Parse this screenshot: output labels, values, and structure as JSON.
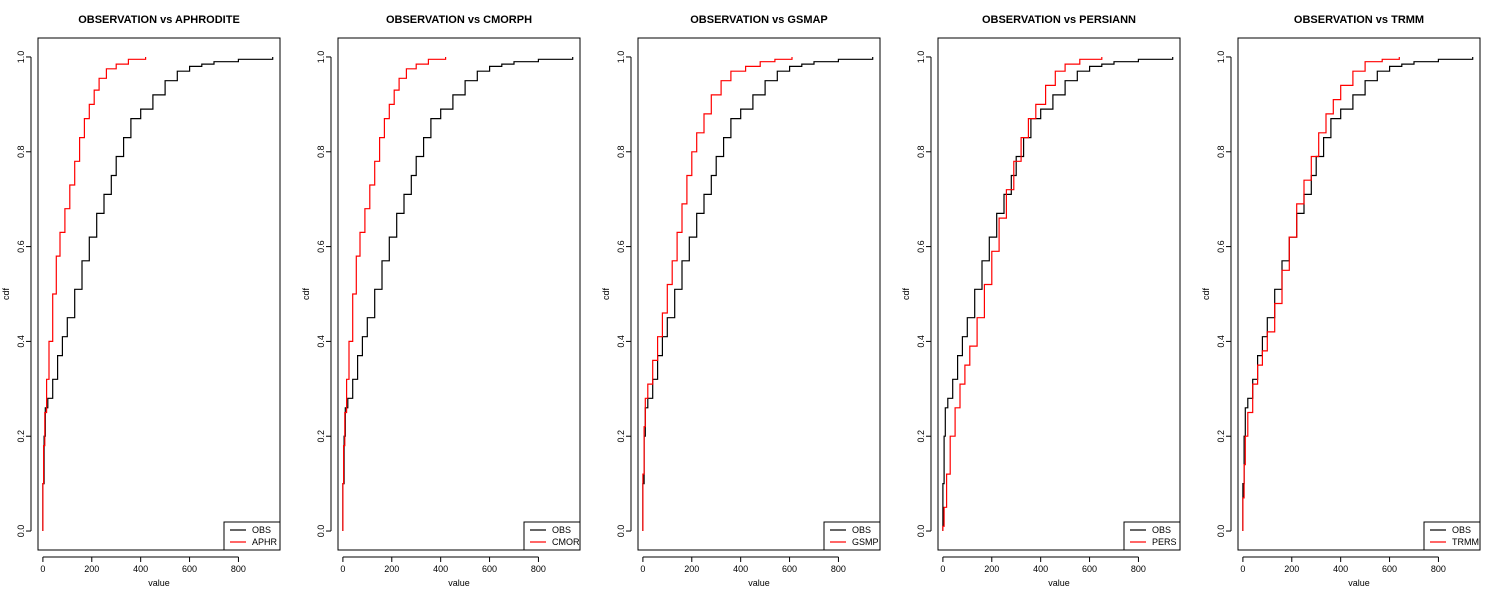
{
  "chart_data": [
    {
      "type": "line",
      "title": "OBSERVATION vs APHRODITE",
      "xlabel": "value",
      "ylabel": "cdf",
      "xlim": [
        -20,
        970
      ],
      "ylim": [
        -0.04,
        1.04
      ],
      "xticks": [
        "0",
        "200",
        "400",
        "600",
        "800"
      ],
      "yticks": [
        "0.0",
        "0.2",
        "0.4",
        "0.6",
        "0.8",
        "1.0"
      ],
      "grid": false,
      "legend": "bottom-right",
      "series": [
        {
          "name": "OBS",
          "color": "#000000",
          "x": [
            0,
            0,
            5,
            10,
            20,
            40,
            60,
            80,
            100,
            130,
            160,
            190,
            220,
            250,
            280,
            300,
            330,
            360,
            400,
            450,
            500,
            550,
            600,
            650,
            700,
            800,
            940
          ],
          "y": [
            0,
            0.1,
            0.2,
            0.26,
            0.28,
            0.32,
            0.37,
            0.41,
            0.45,
            0.51,
            0.57,
            0.62,
            0.67,
            0.71,
            0.75,
            0.79,
            0.83,
            0.87,
            0.89,
            0.92,
            0.95,
            0.97,
            0.98,
            0.985,
            0.99,
            0.995,
            1.0
          ]
        },
        {
          "name": "APHR",
          "color": "#ff0000",
          "x": [
            0,
            0,
            3,
            8,
            15,
            25,
            40,
            55,
            70,
            90,
            110,
            130,
            150,
            170,
            190,
            210,
            230,
            260,
            300,
            350,
            420
          ],
          "y": [
            0,
            0.1,
            0.18,
            0.25,
            0.32,
            0.4,
            0.5,
            0.58,
            0.63,
            0.68,
            0.73,
            0.78,
            0.83,
            0.87,
            0.9,
            0.93,
            0.955,
            0.975,
            0.985,
            0.995,
            1.0
          ]
        }
      ]
    },
    {
      "type": "line",
      "title": "OBSERVATION vs CMORPH",
      "xlabel": "value",
      "ylabel": "cdf",
      "xlim": [
        -20,
        970
      ],
      "ylim": [
        -0.04,
        1.04
      ],
      "xticks": [
        "0",
        "200",
        "400",
        "600",
        "800"
      ],
      "yticks": [
        "0.0",
        "0.2",
        "0.4",
        "0.6",
        "0.8",
        "1.0"
      ],
      "grid": false,
      "legend": "bottom-right",
      "series": [
        {
          "name": "OBS",
          "color": "#000000",
          "x": [
            0,
            0,
            5,
            10,
            20,
            40,
            60,
            80,
            100,
            130,
            160,
            190,
            220,
            250,
            280,
            300,
            330,
            360,
            400,
            450,
            500,
            550,
            600,
            650,
            700,
            800,
            940
          ],
          "y": [
            0,
            0.1,
            0.2,
            0.26,
            0.28,
            0.32,
            0.37,
            0.41,
            0.45,
            0.51,
            0.57,
            0.62,
            0.67,
            0.71,
            0.75,
            0.79,
            0.83,
            0.87,
            0.89,
            0.92,
            0.95,
            0.97,
            0.98,
            0.985,
            0.99,
            0.995,
            1.0
          ]
        },
        {
          "name": "CMOR",
          "color": "#ff0000",
          "x": [
            0,
            0,
            3,
            8,
            15,
            25,
            40,
            55,
            70,
            90,
            110,
            130,
            150,
            170,
            190,
            210,
            230,
            260,
            300,
            350,
            420
          ],
          "y": [
            0,
            0.1,
            0.18,
            0.25,
            0.32,
            0.4,
            0.5,
            0.58,
            0.63,
            0.68,
            0.73,
            0.78,
            0.83,
            0.87,
            0.9,
            0.93,
            0.955,
            0.975,
            0.985,
            0.995,
            1.0
          ]
        }
      ]
    },
    {
      "type": "line",
      "title": "OBSERVATION vs GSMAP",
      "xlabel": "value",
      "ylabel": "cdf",
      "xlim": [
        -20,
        970
      ],
      "ylim": [
        -0.04,
        1.04
      ],
      "xticks": [
        "0",
        "200",
        "400",
        "600",
        "800"
      ],
      "yticks": [
        "0.0",
        "0.2",
        "0.4",
        "0.6",
        "0.8",
        "1.0"
      ],
      "grid": false,
      "legend": "bottom-right",
      "series": [
        {
          "name": "OBS",
          "color": "#000000",
          "x": [
            0,
            0,
            5,
            10,
            20,
            40,
            60,
            80,
            100,
            130,
            160,
            190,
            220,
            250,
            280,
            300,
            330,
            360,
            400,
            450,
            500,
            550,
            600,
            650,
            700,
            800,
            940
          ],
          "y": [
            0,
            0.1,
            0.2,
            0.26,
            0.28,
            0.32,
            0.37,
            0.41,
            0.45,
            0.51,
            0.57,
            0.62,
            0.67,
            0.71,
            0.75,
            0.79,
            0.83,
            0.87,
            0.89,
            0.92,
            0.95,
            0.97,
            0.98,
            0.985,
            0.99,
            0.995,
            1.0
          ]
        },
        {
          "name": "GSMP",
          "color": "#ff0000",
          "x": [
            0,
            0,
            5,
            10,
            20,
            40,
            60,
            80,
            100,
            120,
            140,
            160,
            180,
            200,
            220,
            250,
            280,
            320,
            360,
            420,
            480,
            540,
            610
          ],
          "y": [
            0,
            0.12,
            0.22,
            0.28,
            0.31,
            0.36,
            0.41,
            0.46,
            0.52,
            0.57,
            0.63,
            0.69,
            0.75,
            0.8,
            0.84,
            0.88,
            0.92,
            0.95,
            0.97,
            0.98,
            0.99,
            0.995,
            1.0
          ]
        }
      ]
    },
    {
      "type": "line",
      "title": "OBSERVATION vs PERSIANN",
      "xlabel": "value",
      "ylabel": "cdf",
      "xlim": [
        -20,
        970
      ],
      "ylim": [
        -0.04,
        1.04
      ],
      "xticks": [
        "0",
        "200",
        "400",
        "600",
        "800"
      ],
      "yticks": [
        "0.0",
        "0.2",
        "0.4",
        "0.6",
        "0.8",
        "1.0"
      ],
      "grid": false,
      "legend": "bottom-right",
      "series": [
        {
          "name": "OBS",
          "color": "#000000",
          "x": [
            0,
            0,
            5,
            10,
            20,
            40,
            60,
            80,
            100,
            130,
            160,
            190,
            220,
            250,
            280,
            300,
            330,
            360,
            400,
            450,
            500,
            550,
            600,
            650,
            700,
            800,
            940
          ],
          "y": [
            0,
            0.1,
            0.2,
            0.26,
            0.28,
            0.32,
            0.37,
            0.41,
            0.45,
            0.51,
            0.57,
            0.62,
            0.67,
            0.71,
            0.75,
            0.79,
            0.83,
            0.87,
            0.89,
            0.92,
            0.95,
            0.97,
            0.98,
            0.985,
            0.99,
            0.995,
            1.0
          ]
        },
        {
          "name": "PERS",
          "color": "#ff0000",
          "x": [
            0,
            0,
            5,
            15,
            30,
            50,
            70,
            90,
            110,
            140,
            170,
            200,
            230,
            260,
            290,
            320,
            350,
            380,
            420,
            460,
            500,
            560,
            650
          ],
          "y": [
            0,
            0.01,
            0.05,
            0.12,
            0.2,
            0.26,
            0.31,
            0.35,
            0.39,
            0.45,
            0.52,
            0.59,
            0.66,
            0.72,
            0.78,
            0.83,
            0.87,
            0.9,
            0.94,
            0.97,
            0.985,
            0.995,
            1.0
          ]
        }
      ]
    },
    {
      "type": "line",
      "title": "OBSERVATION vs TRMM",
      "xlabel": "value",
      "ylabel": "cdf",
      "xlim": [
        -20,
        970
      ],
      "ylim": [
        -0.04,
        1.04
      ],
      "xticks": [
        "0",
        "200",
        "400",
        "600",
        "800"
      ],
      "yticks": [
        "0.0",
        "0.2",
        "0.4",
        "0.6",
        "0.8",
        "1.0"
      ],
      "grid": false,
      "legend": "bottom-right",
      "series": [
        {
          "name": "OBS",
          "color": "#000000",
          "x": [
            0,
            0,
            5,
            10,
            20,
            40,
            60,
            80,
            100,
            130,
            160,
            190,
            220,
            250,
            280,
            300,
            330,
            360,
            400,
            450,
            500,
            550,
            600,
            650,
            700,
            800,
            940
          ],
          "y": [
            0,
            0.1,
            0.2,
            0.26,
            0.28,
            0.32,
            0.37,
            0.41,
            0.45,
            0.51,
            0.57,
            0.62,
            0.67,
            0.71,
            0.75,
            0.79,
            0.83,
            0.87,
            0.89,
            0.92,
            0.95,
            0.97,
            0.98,
            0.985,
            0.99,
            0.995,
            1.0
          ]
        },
        {
          "name": "TRMM",
          "color": "#ff0000",
          "x": [
            0,
            0,
            5,
            10,
            20,
            40,
            60,
            80,
            100,
            130,
            160,
            190,
            220,
            250,
            280,
            310,
            340,
            370,
            400,
            450,
            500,
            570,
            640
          ],
          "y": [
            0,
            0.07,
            0.14,
            0.2,
            0.25,
            0.31,
            0.35,
            0.38,
            0.42,
            0.48,
            0.55,
            0.62,
            0.69,
            0.74,
            0.79,
            0.84,
            0.88,
            0.91,
            0.94,
            0.97,
            0.99,
            0.995,
            1.0
          ]
        }
      ]
    }
  ]
}
